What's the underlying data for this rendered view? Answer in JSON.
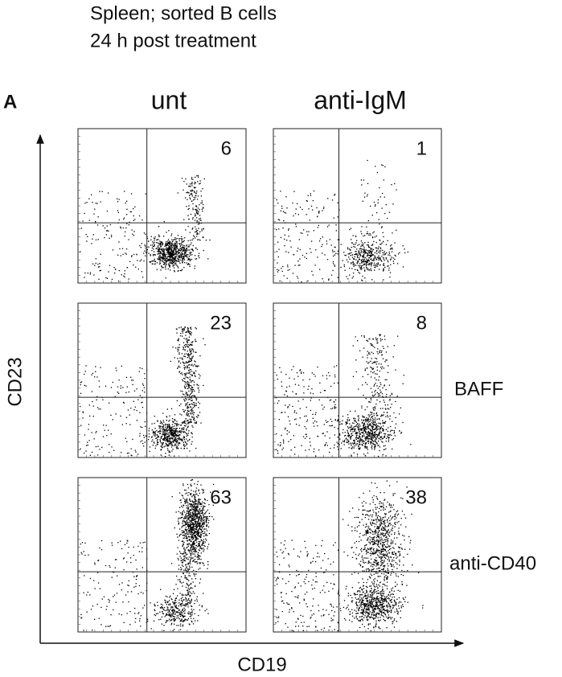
{
  "header": {
    "lines": [
      "Spleen; sorted B cells",
      "24 h post treatment"
    ]
  },
  "figure": {
    "label": "A",
    "columns": [
      "unt",
      "anti-IgM"
    ],
    "rows": [
      null,
      "BAFF",
      "anti-CD40"
    ],
    "y_axis_label": "CD23",
    "x_axis_label": "CD19",
    "panels": [
      [
        6,
        1
      ],
      [
        23,
        8
      ],
      [
        63,
        38
      ]
    ]
  }
}
